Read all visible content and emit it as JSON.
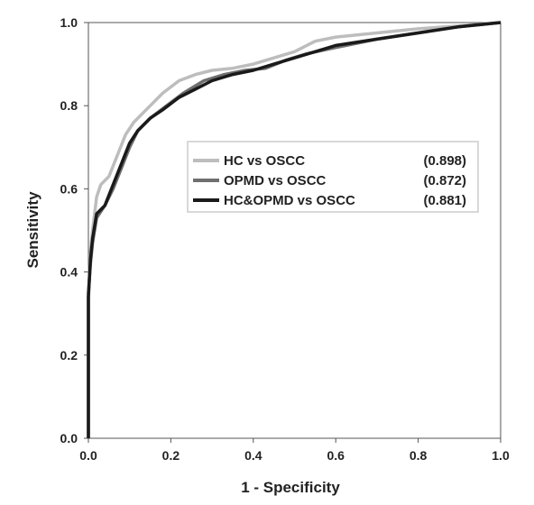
{
  "chart_data": {
    "type": "line",
    "title": "",
    "xlabel": "1 - Specificity",
    "ylabel": "Sensitivity",
    "xlim": [
      0,
      1
    ],
    "ylim": [
      0,
      1
    ],
    "x_ticks": [
      "0.0",
      "0.2",
      "0.4",
      "0.6",
      "0.8",
      "1.0"
    ],
    "y_ticks": [
      "0.0",
      "0.2",
      "0.4",
      "0.6",
      "0.8",
      "1.0"
    ],
    "grid": false,
    "legend_position": "center-right",
    "series": [
      {
        "name": "HC vs OSCC",
        "auc": "(0.898)",
        "color": "#bdbdbd",
        "points": [
          [
            0,
            0
          ],
          [
            0,
            0.33
          ],
          [
            0.005,
            0.45
          ],
          [
            0.01,
            0.5
          ],
          [
            0.02,
            0.58
          ],
          [
            0.03,
            0.61
          ],
          [
            0.05,
            0.63
          ],
          [
            0.07,
            0.68
          ],
          [
            0.09,
            0.73
          ],
          [
            0.11,
            0.76
          ],
          [
            0.13,
            0.78
          ],
          [
            0.15,
            0.8
          ],
          [
            0.18,
            0.83
          ],
          [
            0.22,
            0.86
          ],
          [
            0.26,
            0.875
          ],
          [
            0.3,
            0.885
          ],
          [
            0.35,
            0.89
          ],
          [
            0.4,
            0.9
          ],
          [
            0.45,
            0.915
          ],
          [
            0.5,
            0.93
          ],
          [
            0.55,
            0.955
          ],
          [
            0.6,
            0.965
          ],
          [
            0.7,
            0.975
          ],
          [
            0.8,
            0.985
          ],
          [
            0.9,
            0.992
          ],
          [
            1,
            1
          ]
        ]
      },
      {
        "name": "OPMD vs OSCC",
        "auc": "(0.872)",
        "color": "#6f6f6f",
        "points": [
          [
            0,
            0
          ],
          [
            0,
            0.35
          ],
          [
            0.005,
            0.42
          ],
          [
            0.01,
            0.47
          ],
          [
            0.02,
            0.53
          ],
          [
            0.04,
            0.56
          ],
          [
            0.06,
            0.6
          ],
          [
            0.08,
            0.65
          ],
          [
            0.1,
            0.7
          ],
          [
            0.12,
            0.74
          ],
          [
            0.15,
            0.77
          ],
          [
            0.19,
            0.8
          ],
          [
            0.23,
            0.83
          ],
          [
            0.28,
            0.86
          ],
          [
            0.33,
            0.875
          ],
          [
            0.38,
            0.885
          ],
          [
            0.43,
            0.89
          ],
          [
            0.48,
            0.91
          ],
          [
            0.53,
            0.925
          ],
          [
            0.6,
            0.94
          ],
          [
            0.7,
            0.96
          ],
          [
            0.8,
            0.975
          ],
          [
            0.9,
            0.99
          ],
          [
            1,
            1
          ]
        ]
      },
      {
        "name": "HC&OPMD vs OSCC",
        "auc": "(0.881)",
        "color": "#1a1a1a",
        "points": [
          [
            0,
            0
          ],
          [
            0,
            0.34
          ],
          [
            0.005,
            0.43
          ],
          [
            0.01,
            0.48
          ],
          [
            0.02,
            0.54
          ],
          [
            0.04,
            0.56
          ],
          [
            0.06,
            0.61
          ],
          [
            0.08,
            0.66
          ],
          [
            0.1,
            0.71
          ],
          [
            0.12,
            0.74
          ],
          [
            0.15,
            0.77
          ],
          [
            0.18,
            0.79
          ],
          [
            0.22,
            0.82
          ],
          [
            0.26,
            0.84
          ],
          [
            0.3,
            0.86
          ],
          [
            0.35,
            0.875
          ],
          [
            0.4,
            0.885
          ],
          [
            0.45,
            0.9
          ],
          [
            0.5,
            0.915
          ],
          [
            0.55,
            0.93
          ],
          [
            0.6,
            0.945
          ],
          [
            0.7,
            0.96
          ],
          [
            0.8,
            0.975
          ],
          [
            0.9,
            0.99
          ],
          [
            1,
            1
          ]
        ]
      }
    ]
  }
}
